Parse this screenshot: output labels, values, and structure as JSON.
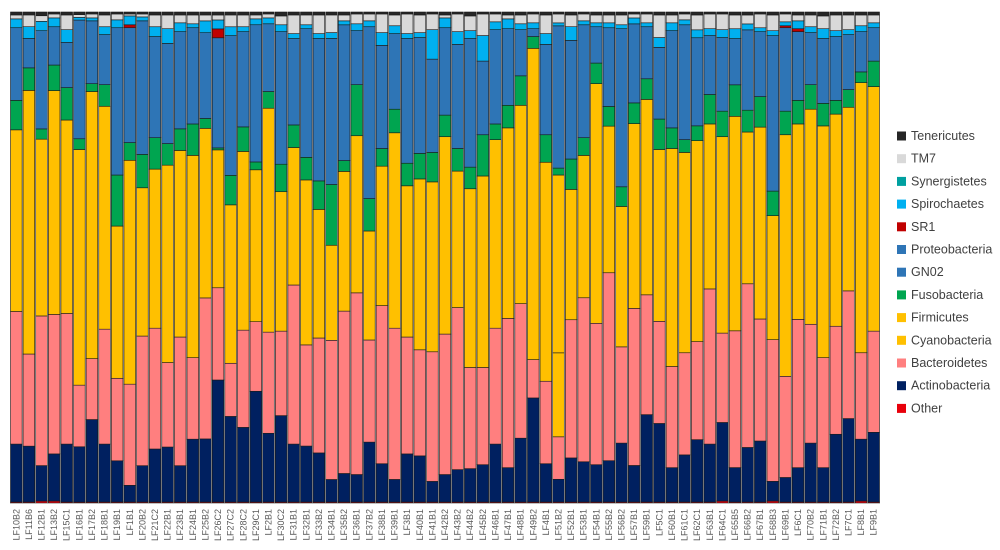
{
  "chart_data": {
    "type": "bar",
    "stacked": true,
    "normalized": true,
    "title": "",
    "xlabel": "",
    "ylabel": "",
    "ylim": [
      0,
      1
    ],
    "grid": false,
    "legend_position": "right",
    "categories": [
      "LF10B2",
      "LF11B6",
      "LF12B1",
      "LF13B2",
      "LF15C1",
      "LF16B1",
      "LF17B2",
      "LF18B1",
      "LF19B1",
      "LF1B1",
      "LF20B2",
      "LF21C2",
      "LF22B1",
      "LF23B1",
      "LF24B1",
      "LF25B2",
      "LF26C2",
      "LF27C2",
      "LF28C2",
      "LF29C1",
      "LF2B1",
      "LF30C2",
      "LF31B1",
      "LF32B1",
      "LF33B2",
      "LF34B1",
      "LF35B2",
      "LF36B1",
      "LF37B2",
      "LF38B1",
      "LF39B1",
      "LF3B1",
      "LF40B1",
      "LF41B1",
      "LF42B2",
      "LF43B2",
      "LF44B2",
      "LF45B2",
      "LF46B1",
      "LF47B1",
      "LF48B1",
      "LF49B2",
      "LF4B1",
      "LF51B2",
      "LF52B1",
      "LF53B1",
      "LF54B1",
      "LF55B2",
      "LF56B2",
      "LF57B1",
      "LF59B1",
      "LF5C1",
      "LF60B1",
      "LF61C1",
      "LF62C1",
      "LF63B1",
      "LF64C1",
      "LF65B5",
      "LF66B2",
      "LF67B1",
      "LF68B3",
      "LF69B1",
      "LF6C1",
      "LF70B2",
      "LF71B1",
      "LF72B2",
      "LF7C1",
      "LF8B1",
      "LF9B1"
    ],
    "series": [
      {
        "name": "Other",
        "color": "#e8000b",
        "values": [
          0.002,
          0.002,
          0.004,
          0.004,
          0.002,
          0.002,
          0.002,
          0.002,
          0.002,
          0.002,
          0.002,
          0.002,
          0.002,
          0.002,
          0.002,
          0.002,
          0.002,
          0.002,
          0.002,
          0.002,
          0.002,
          0.002,
          0.002,
          0.002,
          0.002,
          0.002,
          0.002,
          0.002,
          0.002,
          0.002,
          0.002,
          0.002,
          0.002,
          0.002,
          0.002,
          0.002,
          0.002,
          0.002,
          0.002,
          0.002,
          0.002,
          0.002,
          0.002,
          0.002,
          0.002,
          0.002,
          0.002,
          0.002,
          0.002,
          0.002,
          0.002,
          0.002,
          0.002,
          0.002,
          0.002,
          0.002,
          0.004,
          0.002,
          0.002,
          0.002,
          0.004,
          0.002,
          0.002,
          0.002,
          0.002,
          0.002,
          0.002,
          0.004,
          0.002
        ]
      },
      {
        "name": "Actinobacteria",
        "color": "#002060",
        "values": [
          0.118,
          0.114,
          0.076,
          0.096,
          0.118,
          0.124,
          0.168,
          0.118,
          0.084,
          0.034,
          0.074,
          0.108,
          0.112,
          0.074,
          0.128,
          0.128,
          0.246,
          0.174,
          0.152,
          0.226,
          0.14,
          0.176,
          0.118,
          0.114,
          0.1,
          0.046,
          0.058,
          0.056,
          0.122,
          0.078,
          0.046,
          0.098,
          0.094,
          0.042,
          0.056,
          0.066,
          0.068,
          0.076,
          0.118,
          0.07,
          0.13,
          0.212,
          0.078,
          0.046,
          0.09,
          0.082,
          0.076,
          0.084,
          0.12,
          0.074,
          0.178,
          0.16,
          0.07,
          0.096,
          0.126,
          0.118,
          0.16,
          0.07,
          0.11,
          0.124,
          0.04,
          0.05,
          0.07,
          0.12,
          0.07,
          0.138,
          0.17,
          0.126,
          0.142
        ]
      },
      {
        "name": "Bacteroidetes",
        "color": "#ff7f7f",
        "values": [
          0.27,
          0.188,
          0.32,
          0.284,
          0.266,
          0.138,
          0.124,
          0.234,
          0.168,
          0.206,
          0.264,
          0.246,
          0.172,
          0.262,
          0.166,
          0.286,
          0.186,
          0.108,
          0.198,
          0.142,
          0.206,
          0.172,
          0.324,
          0.206,
          0.234,
          0.284,
          0.33,
          0.37,
          0.208,
          0.322,
          0.308,
          0.238,
          0.216,
          0.264,
          0.286,
          0.33,
          0.206,
          0.198,
          0.236,
          0.304,
          0.274,
          0.078,
          0.168,
          0.086,
          0.282,
          0.334,
          0.288,
          0.382,
          0.196,
          0.318,
          0.244,
          0.208,
          0.206,
          0.208,
          0.198,
          0.316,
          0.182,
          0.278,
          0.33,
          0.248,
          0.288,
          0.206,
          0.302,
          0.242,
          0.224,
          0.22,
          0.26,
          0.176,
          0.206
        ]
      },
      {
        "name": "Cyanobacteria",
        "color": "#ffc000",
        "values": [
          0,
          0,
          0,
          0,
          0,
          0,
          0,
          0,
          0,
          0,
          0,
          0,
          0,
          0,
          0,
          0,
          0,
          0,
          0,
          0,
          0,
          0,
          0,
          0,
          0,
          0,
          0,
          0,
          0,
          0,
          0,
          0,
          0,
          0,
          0,
          0,
          0,
          0,
          0,
          0,
          0,
          0,
          0,
          0.17,
          0,
          0,
          0,
          0,
          0,
          0,
          0,
          0,
          0,
          0,
          0,
          0,
          0,
          0,
          0,
          0,
          0,
          0,
          0,
          0,
          0,
          0,
          0,
          0,
          0
        ]
      },
      {
        "name": "Firmicutes",
        "color": "#ffc000",
        "values": [
          0.37,
          0.538,
          0.378,
          0.456,
          0.394,
          0.528,
          0.544,
          0.454,
          0.31,
          0.456,
          0.302,
          0.324,
          0.402,
          0.38,
          0.412,
          0.344,
          0.278,
          0.322,
          0.364,
          0.31,
          0.456,
          0.284,
          0.28,
          0.336,
          0.262,
          0.194,
          0.284,
          0.32,
          0.222,
          0.284,
          0.398,
          0.308,
          0.348,
          0.346,
          0.402,
          0.278,
          0.364,
          0.39,
          0.384,
          0.388,
          0.404,
          0.634,
          0.446,
          0.36,
          0.266,
          0.29,
          0.488,
          0.298,
          0.286,
          0.374,
          0.398,
          0.35,
          0.444,
          0.408,
          0.406,
          0.336,
          0.4,
          0.436,
          0.306,
          0.39,
          0.252,
          0.492,
          0.398,
          0.438,
          0.472,
          0.432,
          0.374,
          0.55,
          0.498
        ]
      },
      {
        "name": "Fusobacteria",
        "color": "#00a550",
        "values": [
          0.06,
          0.046,
          0.022,
          0.052,
          0.066,
          0.024,
          0.016,
          0.044,
          0.104,
          0.036,
          0.068,
          0.064,
          0.044,
          0.044,
          0.064,
          0.02,
          0.004,
          0.06,
          0.05,
          0.016,
          0.034,
          0.056,
          0.046,
          0.046,
          0.058,
          0.124,
          0.022,
          0.104,
          0.066,
          0.036,
          0.048,
          0.046,
          0.052,
          0.06,
          0.044,
          0.046,
          0.044,
          0.084,
          0.032,
          0.046,
          0.06,
          0.024,
          0.056,
          0.014,
          0.062,
          0.036,
          0.042,
          0.04,
          0.04,
          0.042,
          0.042,
          0.062,
          0.042,
          0.026,
          0.03,
          0.06,
          0.052,
          0.064,
          0.044,
          0.062,
          0.05,
          0.048,
          0.048,
          0.05,
          0.046,
          0.028,
          0.036,
          0.022,
          0.052
        ]
      },
      {
        "name": "GN02",
        "color": "#2e75b6",
        "values": [
          0,
          0,
          0,
          0,
          0,
          0,
          0,
          0,
          0,
          0,
          0,
          0,
          0,
          0,
          0,
          0,
          0,
          0,
          0,
          0,
          0,
          0,
          0,
          0,
          0,
          0,
          0,
          0,
          0,
          0,
          0,
          0,
          0,
          0,
          0,
          0,
          0,
          0,
          0,
          0,
          0,
          0,
          0,
          0,
          0,
          0,
          0,
          0,
          0,
          0,
          0,
          0,
          0,
          0,
          0,
          0,
          0,
          0,
          0,
          0,
          0,
          0,
          0,
          0,
          0,
          0,
          0,
          0,
          0
        ]
      },
      {
        "name": "Proteobacteria",
        "color": "#2e75b6",
        "values": [
          0.148,
          0.06,
          0.21,
          0.078,
          0.092,
          0.266,
          0.128,
          0.102,
          0.3,
          0.234,
          0.272,
          0.206,
          0.204,
          0.198,
          0.196,
          0.174,
          0.222,
          0.284,
          0.194,
          0.28,
          0.138,
          0.27,
          0.176,
          0.262,
          0.29,
          0.298,
          0.276,
          0.11,
          0.35,
          0.21,
          0.154,
          0.254,
          0.236,
          0.19,
          0.178,
          0.212,
          0.262,
          0.15,
          0.192,
          0.156,
          0.094,
          0.016,
          0.184,
          0.288,
          0.242,
          0.23,
          0.074,
          0.16,
          0.322,
          0.16,
          0.106,
          0.146,
          0.198,
          0.234,
          0.178,
          0.12,
          0.15,
          0.094,
          0.162,
          0.132,
          0.316,
          0.17,
          0.14,
          0.106,
          0.132,
          0.13,
          0.112,
          0.082,
          0.068
        ]
      },
      {
        "name": "SR1",
        "color": "#c00000",
        "values": [
          0,
          0,
          0,
          0,
          0,
          0,
          0,
          0,
          0,
          0.006,
          0,
          0,
          0,
          0,
          0,
          0,
          0.018,
          0,
          0,
          0,
          0,
          0,
          0,
          0,
          0,
          0,
          0,
          0,
          0,
          0,
          0,
          0,
          0,
          0,
          0,
          0,
          0,
          0,
          0,
          0,
          0,
          0,
          0,
          0,
          0,
          0,
          0,
          0,
          0,
          0,
          0,
          0,
          0,
          0,
          0,
          0,
          0,
          0,
          0,
          0,
          0,
          0.004,
          0.006,
          0,
          0,
          0,
          0,
          0,
          0
        ]
      },
      {
        "name": "Spirochaetes",
        "color": "#00b0f0",
        "values": [
          0.018,
          0.024,
          0.02,
          0.018,
          0.026,
          0.006,
          0.006,
          0.016,
          0.016,
          0.018,
          0.008,
          0.02,
          0.03,
          0.018,
          0.008,
          0.024,
          0.018,
          0.018,
          0.01,
          0.012,
          0.012,
          0.014,
          0.01,
          0.008,
          0.01,
          0.012,
          0.008,
          0.014,
          0.012,
          0.026,
          0.016,
          0.01,
          0.01,
          0.06,
          0.02,
          0.026,
          0.016,
          0.052,
          0.016,
          0.02,
          0.012,
          0.012,
          0.022,
          0.006,
          0.028,
          0.008,
          0.008,
          0.01,
          0.008,
          0.012,
          0.008,
          0.02,
          0.016,
          0.01,
          0.016,
          0.014,
          0.016,
          0.02,
          0.012,
          0.008,
          0.01,
          0.008,
          0.016,
          0.012,
          0.02,
          0.012,
          0.01,
          0.012,
          0.01
        ]
      },
      {
        "name": "Synergistetes",
        "color": "#00a0a0",
        "values": [
          0,
          0,
          0,
          0,
          0,
          0,
          0,
          0,
          0,
          0,
          0,
          0,
          0,
          0,
          0,
          0,
          0,
          0,
          0,
          0,
          0,
          0,
          0,
          0,
          0,
          0,
          0,
          0,
          0,
          0,
          0,
          0,
          0,
          0,
          0,
          0,
          0,
          0,
          0,
          0,
          0,
          0,
          0,
          0,
          0,
          0,
          0,
          0,
          0,
          0,
          0,
          0,
          0,
          0,
          0,
          0,
          0,
          0,
          0,
          0,
          0,
          0,
          0,
          0,
          0,
          0,
          0,
          0,
          0
        ]
      },
      {
        "name": "TM7",
        "color": "#d9d9d9",
        "values": [
          0.008,
          0.024,
          0.012,
          0.008,
          0.03,
          0.006,
          0.008,
          0.024,
          0.012,
          0.004,
          0.006,
          0.024,
          0.028,
          0.016,
          0.018,
          0.012,
          0.01,
          0.024,
          0.024,
          0.008,
          0.008,
          0.018,
          0.038,
          0.02,
          0.038,
          0.036,
          0.012,
          0.02,
          0.014,
          0.038,
          0.022,
          0.04,
          0.036,
          0.032,
          0.006,
          0.036,
          0.03,
          0.044,
          0.016,
          0.008,
          0.018,
          0.018,
          0.038,
          0.018,
          0.024,
          0.014,
          0.016,
          0.016,
          0.02,
          0.008,
          0.018,
          0.046,
          0.016,
          0.012,
          0.03,
          0.03,
          0.032,
          0.028,
          0.018,
          0.028,
          0.032,
          0.016,
          0.012,
          0.024,
          0.026,
          0.032,
          0.03,
          0.022,
          0.016
        ]
      },
      {
        "name": "Tenericutes",
        "color": "#262626",
        "values": [
          0.006,
          0.006,
          0.008,
          0.004,
          0.006,
          0.006,
          0.004,
          0.006,
          0.004,
          0.004,
          0.004,
          0.006,
          0.006,
          0.006,
          0.006,
          0.006,
          0.006,
          0.006,
          0.006,
          0.006,
          0.004,
          0.008,
          0.006,
          0.006,
          0.006,
          0.006,
          0.006,
          0.004,
          0.004,
          0.004,
          0.006,
          0.004,
          0.006,
          0.004,
          0.006,
          0.004,
          0.008,
          0.004,
          0.004,
          0.006,
          0.006,
          0.004,
          0.006,
          0.004,
          0.006,
          0.004,
          0.006,
          0.006,
          0.006,
          0.004,
          0.004,
          0.006,
          0.006,
          0.004,
          0.006,
          0.004,
          0.004,
          0.006,
          0.006,
          0.004,
          0.006,
          0.004,
          0.006,
          0.006,
          0.008,
          0.006,
          0.006,
          0.006,
          0.006
        ]
      }
    ],
    "legend_order": [
      "Tenericutes",
      "TM7",
      "Synergistetes",
      "Spirochaetes",
      "SR1",
      "Proteobacteria",
      "GN02",
      "Fusobacteria",
      "Firmicutes",
      "Cyanobacteria",
      "Bacteroidetes",
      "Actinobacteria",
      "Other"
    ]
  }
}
